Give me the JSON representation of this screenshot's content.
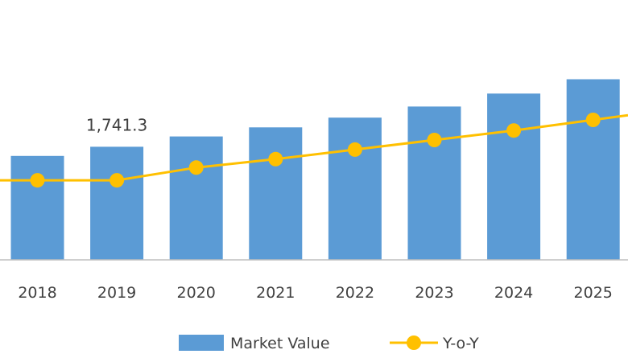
{
  "chart_data": {
    "type": "bar",
    "categories": [
      "2018",
      "2019",
      "2020",
      "2021",
      "2022",
      "2023",
      "2024",
      "2025"
    ],
    "series": [
      {
        "name": "Market Value",
        "type": "bar",
        "color": "#5b9bd5",
        "values": [
          1600,
          1741.3,
          1900,
          2040,
          2190,
          2360,
          2560,
          2780
        ]
      },
      {
        "name": "Y-o-Y",
        "type": "line",
        "color": "#ffc000",
        "axis": "secondary",
        "values": [
          5.0,
          5.0,
          6.2,
          7.0,
          7.9,
          8.8,
          9.7,
          10.7
        ]
      }
    ],
    "data_labels": [
      {
        "category": "2019",
        "series": "Market Value",
        "text": "1,741.3"
      }
    ],
    "ylim": [
      0,
      4000
    ],
    "y2lim": [
      -2.5,
      22
    ],
    "grid": false,
    "legend_position": "bottom",
    "title": "",
    "xlabel": "",
    "ylabel": ""
  }
}
